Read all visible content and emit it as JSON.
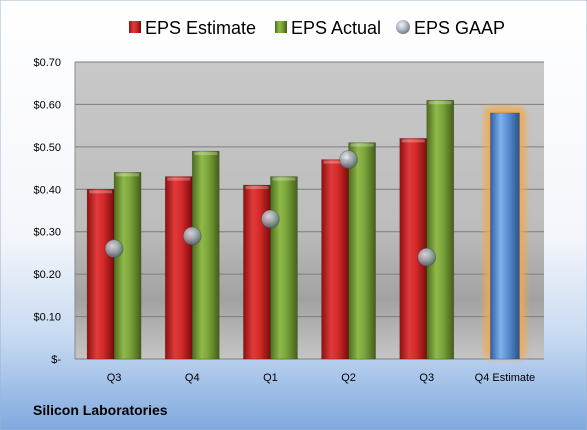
{
  "company": "Silicon Laboratories",
  "colors": {
    "estimate": "#d42a2a",
    "actual": "#7aa33a",
    "gaap": "#a9b4c2",
    "forecast": "#5b8fd3",
    "forecast_glow": "#f4a94a"
  },
  "chart_data": {
    "type": "bar",
    "categories": [
      "Q3",
      "Q4",
      "Q1",
      "Q2",
      "Q3",
      "Q4 Estimate"
    ],
    "y_tick_labels": [
      "$-",
      "$0.10",
      "$0.20",
      "$0.30",
      "$0.40",
      "$0.50",
      "$0.60",
      "$0.70"
    ],
    "ylim": [
      0,
      0.7
    ],
    "grid": true,
    "legend_position": "top",
    "series": [
      {
        "name": "EPS Estimate",
        "mark": "bar",
        "values": [
          0.4,
          0.43,
          0.41,
          0.47,
          0.52,
          null
        ]
      },
      {
        "name": "EPS Actual",
        "mark": "bar",
        "values": [
          0.44,
          0.49,
          0.43,
          0.51,
          0.61,
          null
        ]
      },
      {
        "name": "EPS GAAP",
        "mark": "point",
        "values": [
          0.26,
          0.29,
          0.33,
          0.47,
          0.24,
          null
        ]
      }
    ],
    "forecast": {
      "category": "Q4 Estimate",
      "value": 0.58,
      "highlighted": true
    }
  }
}
